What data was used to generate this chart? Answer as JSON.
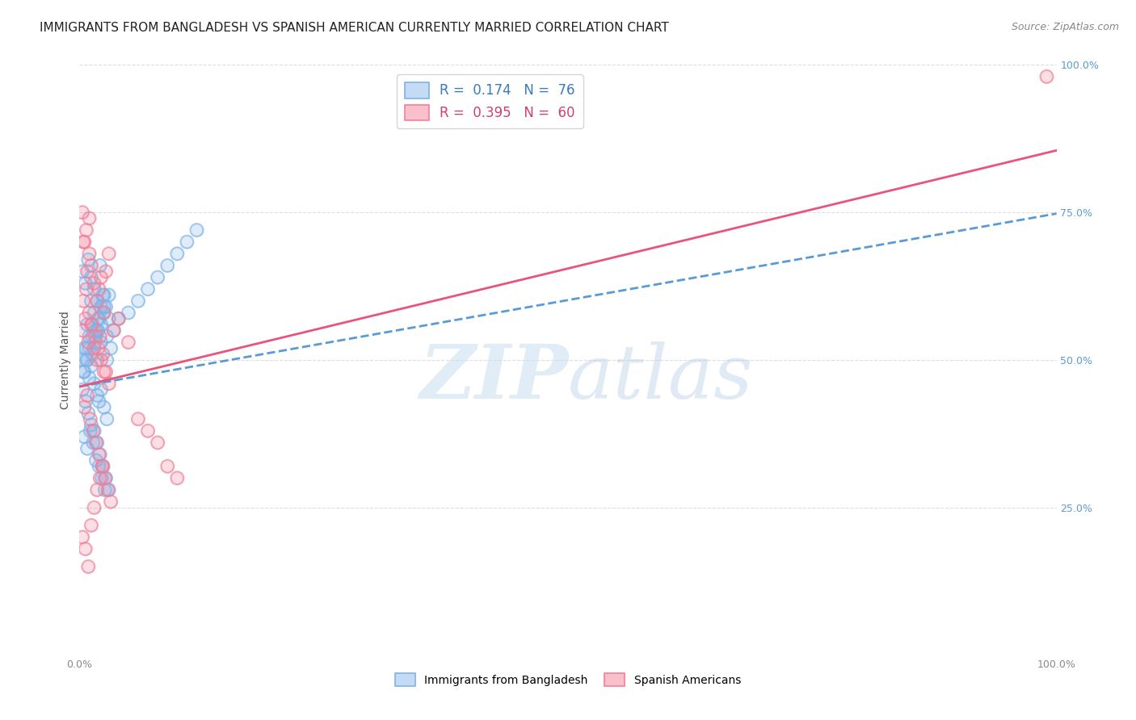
{
  "title": "IMMIGRANTS FROM BANGLADESH VS SPANISH AMERICAN CURRENTLY MARRIED CORRELATION CHART",
  "source": "Source: ZipAtlas.com",
  "ylabel": "Currently Married",
  "xlim": [
    0.0,
    1.0
  ],
  "ylim": [
    0.0,
    1.0
  ],
  "blue_color": "#7eb3e8",
  "blue_line_color": "#5b9bd5",
  "pink_color": "#f0809a",
  "pink_line_color": "#e8547a",
  "blue_scatter_x": [
    0.005,
    0.008,
    0.012,
    0.015,
    0.018,
    0.02,
    0.022,
    0.025,
    0.028,
    0.03,
    0.005,
    0.008,
    0.01,
    0.012,
    0.015,
    0.018,
    0.02,
    0.022,
    0.025,
    0.028,
    0.003,
    0.006,
    0.009,
    0.012,
    0.015,
    0.018,
    0.021,
    0.024,
    0.027,
    0.03,
    0.004,
    0.007,
    0.01,
    0.013,
    0.016,
    0.019,
    0.022,
    0.025,
    0.028,
    0.032,
    0.005,
    0.008,
    0.011,
    0.014,
    0.017,
    0.02,
    0.023,
    0.026,
    0.035,
    0.04,
    0.05,
    0.06,
    0.07,
    0.08,
    0.09,
    0.1,
    0.11,
    0.12,
    0.003,
    0.006,
    0.009,
    0.012,
    0.015,
    0.018,
    0.021,
    0.024,
    0.027,
    0.03,
    0.004,
    0.007,
    0.01,
    0.013,
    0.016,
    0.019,
    0.022,
    0.025
  ],
  "blue_scatter_y": [
    0.52,
    0.56,
    0.6,
    0.58,
    0.55,
    0.57,
    0.53,
    0.59,
    0.54,
    0.61,
    0.48,
    0.5,
    0.47,
    0.49,
    0.46,
    0.44,
    0.43,
    0.45,
    0.42,
    0.4,
    0.65,
    0.63,
    0.67,
    0.64,
    0.62,
    0.6,
    0.66,
    0.61,
    0.59,
    0.57,
    0.5,
    0.52,
    0.54,
    0.51,
    0.53,
    0.55,
    0.56,
    0.58,
    0.5,
    0.52,
    0.37,
    0.35,
    0.38,
    0.36,
    0.33,
    0.32,
    0.3,
    0.28,
    0.55,
    0.57,
    0.58,
    0.6,
    0.62,
    0.64,
    0.66,
    0.68,
    0.7,
    0.72,
    0.45,
    0.43,
    0.41,
    0.39,
    0.38,
    0.36,
    0.34,
    0.32,
    0.3,
    0.28,
    0.48,
    0.5,
    0.52,
    0.54,
    0.55,
    0.57,
    0.59,
    0.61
  ],
  "pink_scatter_x": [
    0.003,
    0.005,
    0.008,
    0.01,
    0.012,
    0.015,
    0.018,
    0.02,
    0.022,
    0.025,
    0.003,
    0.006,
    0.009,
    0.012,
    0.015,
    0.018,
    0.021,
    0.024,
    0.027,
    0.03,
    0.004,
    0.007,
    0.01,
    0.013,
    0.016,
    0.019,
    0.022,
    0.025,
    0.035,
    0.04,
    0.05,
    0.06,
    0.07,
    0.08,
    0.09,
    0.1,
    0.005,
    0.008,
    0.011,
    0.014,
    0.017,
    0.02,
    0.023,
    0.026,
    0.029,
    0.032,
    0.003,
    0.006,
    0.009,
    0.012,
    0.015,
    0.018,
    0.021,
    0.024,
    0.027,
    0.03,
    0.004,
    0.007,
    0.01,
    0.99
  ],
  "pink_scatter_y": [
    0.75,
    0.7,
    0.65,
    0.68,
    0.66,
    0.63,
    0.6,
    0.62,
    0.64,
    0.58,
    0.55,
    0.57,
    0.53,
    0.56,
    0.52,
    0.5,
    0.54,
    0.51,
    0.48,
    0.46,
    0.6,
    0.62,
    0.58,
    0.56,
    0.54,
    0.52,
    0.5,
    0.48,
    0.55,
    0.57,
    0.53,
    0.4,
    0.38,
    0.36,
    0.32,
    0.3,
    0.42,
    0.44,
    0.4,
    0.38,
    0.36,
    0.34,
    0.32,
    0.3,
    0.28,
    0.26,
    0.2,
    0.18,
    0.15,
    0.22,
    0.25,
    0.28,
    0.3,
    0.32,
    0.65,
    0.68,
    0.7,
    0.72,
    0.74,
    0.98
  ],
  "blue_line_x0": 0.0,
  "blue_line_y0": 0.455,
  "blue_line_x1": 1.0,
  "blue_line_y1": 0.748,
  "pink_line_x0": 0.0,
  "pink_line_y0": 0.455,
  "pink_line_x1": 1.0,
  "pink_line_y1": 0.855,
  "watermark_zip": "ZIP",
  "watermark_atlas": "atlas",
  "background_color": "#ffffff",
  "grid_color": "#dddddd",
  "title_fontsize": 11,
  "axis_label_fontsize": 10,
  "tick_fontsize": 9,
  "right_tick_color": "#5b9bd5"
}
